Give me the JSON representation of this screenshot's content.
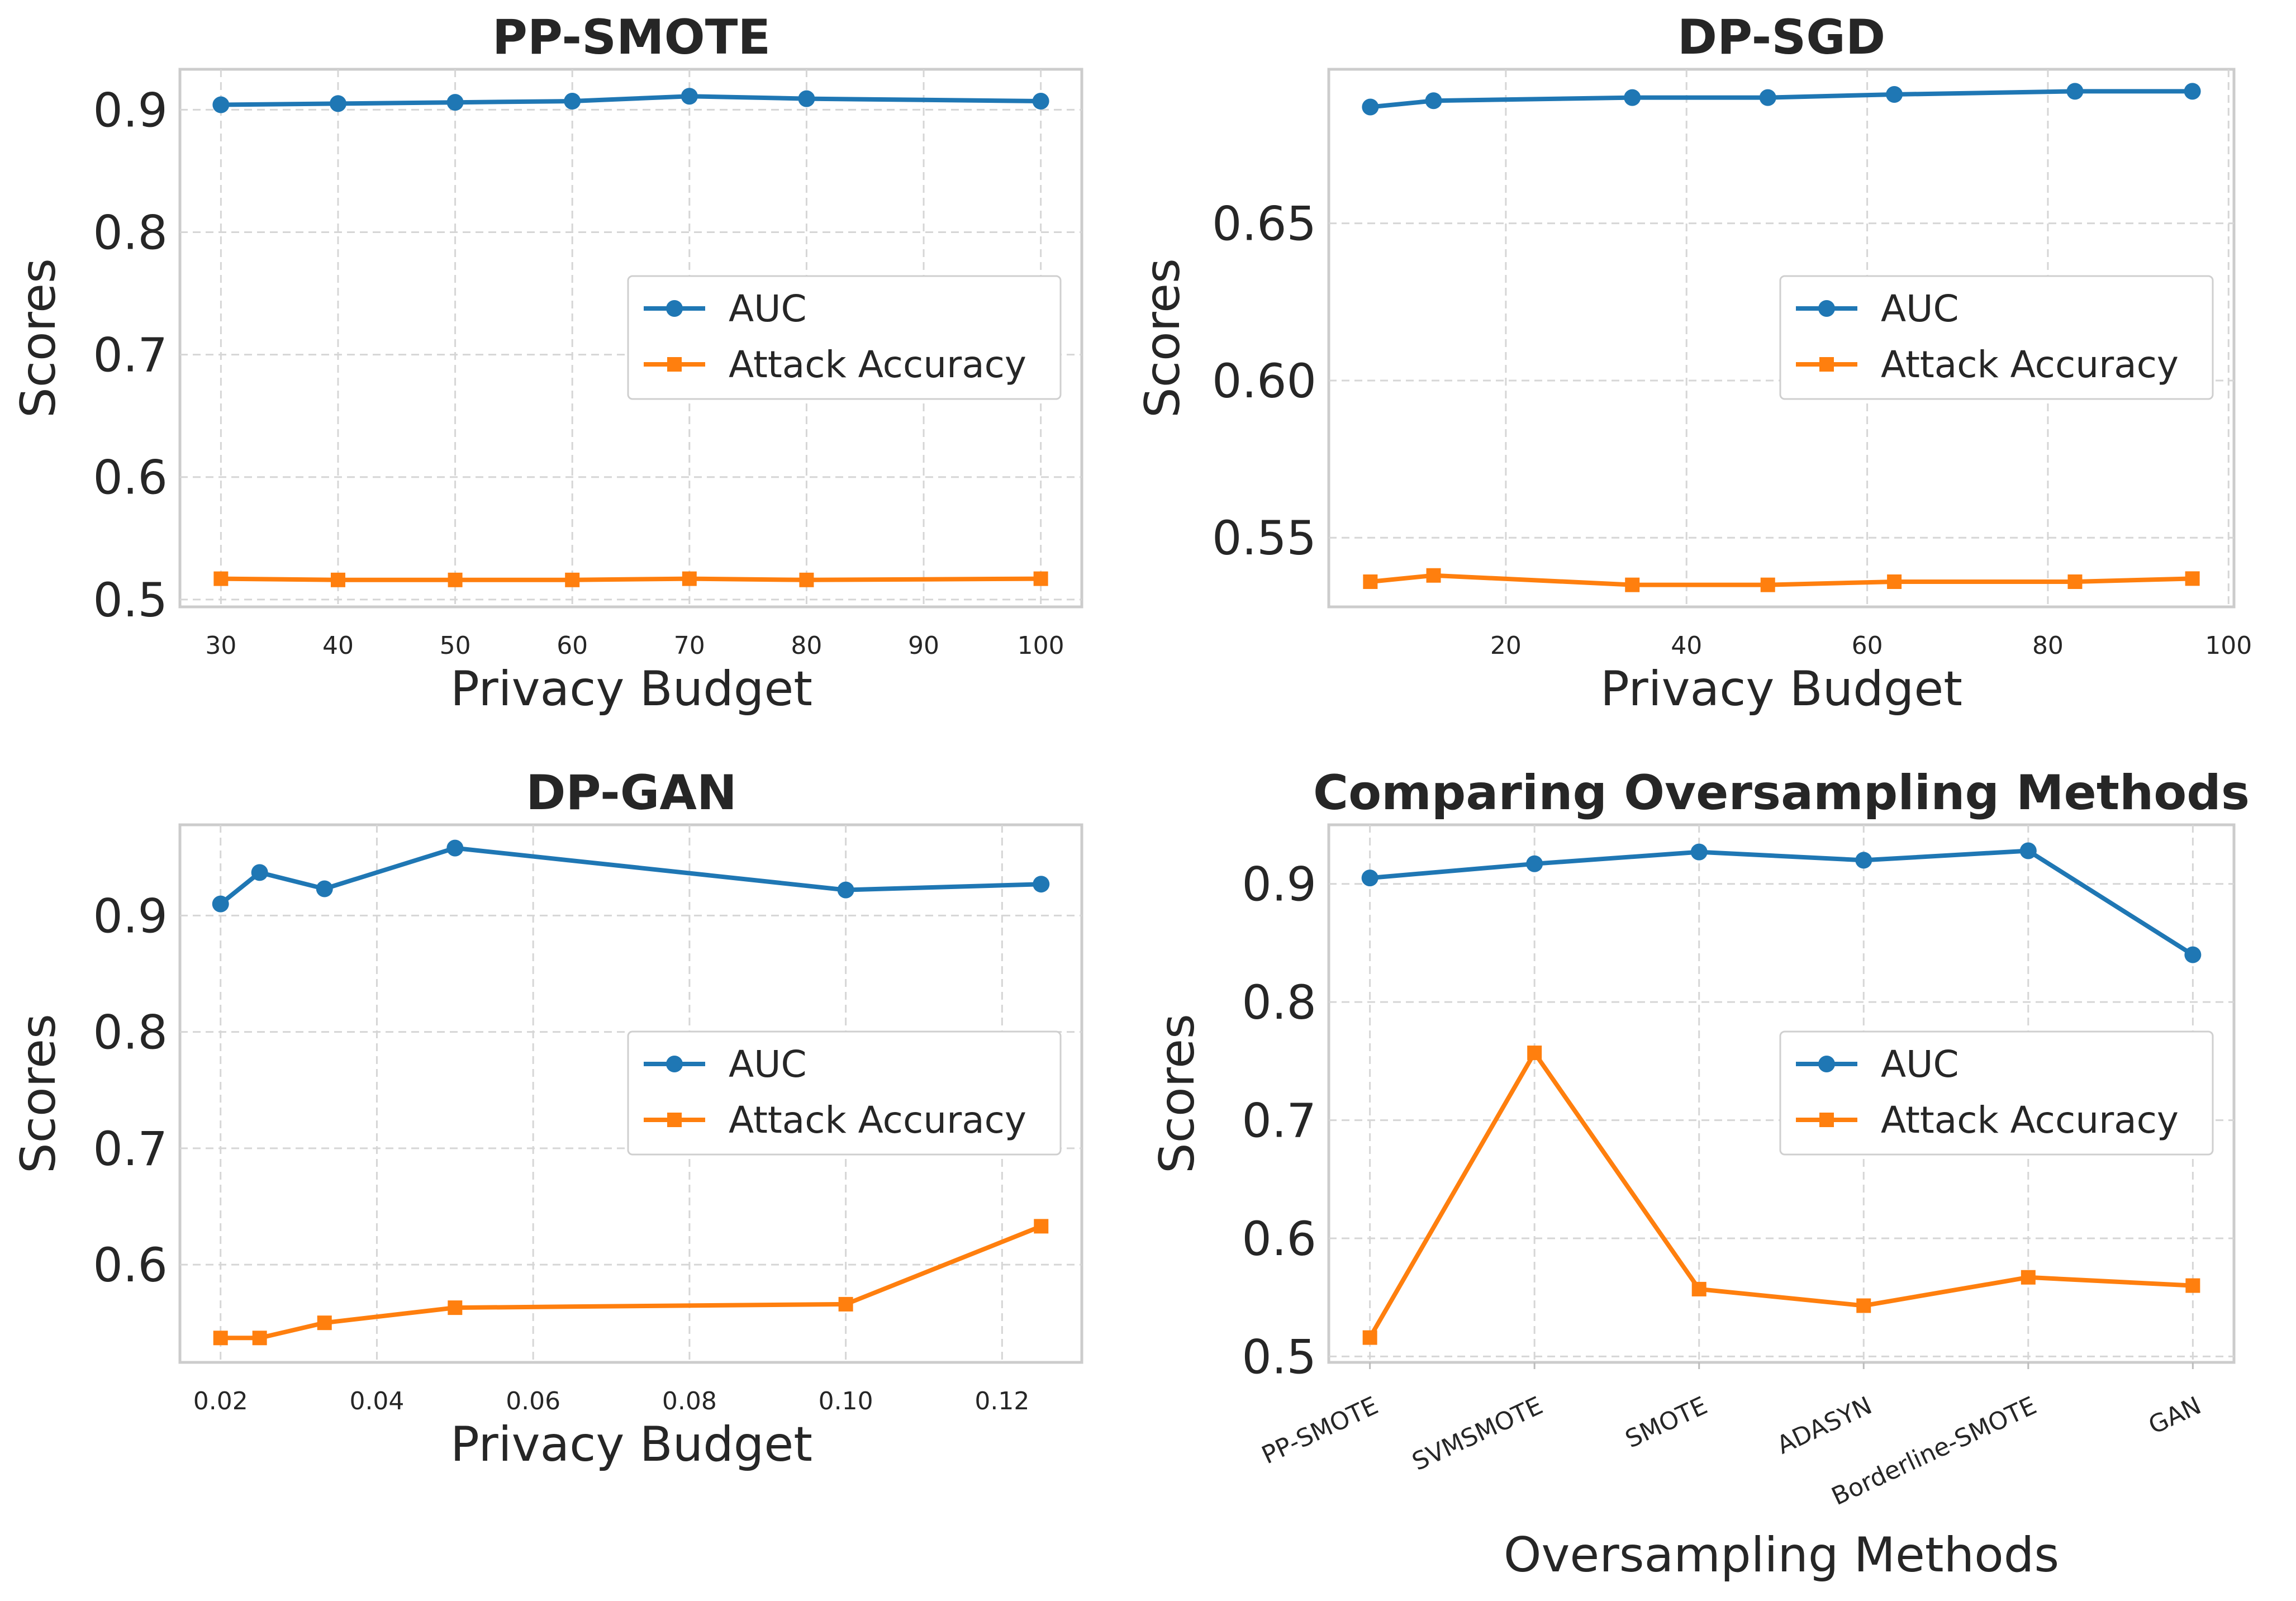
{
  "colors": {
    "auc": "#1f77b4",
    "attack": "#ff7f0e",
    "text": "#262626"
  },
  "chart_data": [
    {
      "type": "line",
      "title": "PP-SMOTE",
      "xlabel": "Privacy Budget",
      "ylabel": "Scores",
      "x": [
        30,
        40,
        50,
        60,
        70,
        80,
        100
      ],
      "xlim": [
        26.5,
        103.5
      ],
      "ylim": [
        0.494,
        0.933
      ],
      "xticks": [
        "30",
        "40",
        "50",
        "60",
        "70",
        "80",
        "90",
        "100"
      ],
      "yticks": [
        "0.5",
        "0.6",
        "0.7",
        "0.8",
        "0.9"
      ],
      "legend": "center-right",
      "series": [
        {
          "name": "AUC",
          "marker": "circle",
          "values": [
            0.904,
            0.905,
            0.906,
            0.907,
            0.911,
            0.909,
            0.907
          ]
        },
        {
          "name": "Attack Accuracy",
          "marker": "square",
          "values": [
            0.517,
            0.516,
            0.516,
            0.516,
            0.517,
            0.516,
            0.517
          ]
        }
      ]
    },
    {
      "type": "line",
      "title": "DP-SGD",
      "xlabel": "Privacy Budget",
      "ylabel": "Scores",
      "x": [
        5,
        12,
        34,
        49,
        63,
        83,
        96
      ],
      "xlim": [
        0.4,
        100.6
      ],
      "ylim": [
        0.528,
        0.699
      ],
      "xticks": [
        "20",
        "40",
        "60",
        "80",
        "100"
      ],
      "yticks": [
        "0.55",
        "0.60",
        "0.65"
      ],
      "legend": "center-right",
      "series": [
        {
          "name": "AUC",
          "marker": "circle",
          "values": [
            0.687,
            0.689,
            0.69,
            0.69,
            0.691,
            0.692,
            0.692
          ]
        },
        {
          "name": "Attack Accuracy",
          "marker": "square",
          "values": [
            0.536,
            0.538,
            0.535,
            0.535,
            0.536,
            0.536,
            0.537
          ]
        }
      ]
    },
    {
      "type": "line",
      "title": "DP-GAN",
      "xlabel": "Privacy Budget",
      "ylabel": "Scores",
      "x": [
        0.02,
        0.025,
        0.0333,
        0.05,
        0.1,
        0.125
      ],
      "xlim": [
        0.0148,
        0.1302
      ],
      "ylim": [
        0.516,
        0.978
      ],
      "xticks": [
        "0.02",
        "0.04",
        "0.06",
        "0.08",
        "0.10",
        "0.12"
      ],
      "yticks": [
        "0.6",
        "0.7",
        "0.8",
        "0.9"
      ],
      "legend": "center-right",
      "series": [
        {
          "name": "AUC",
          "marker": "circle",
          "values": [
            0.91,
            0.937,
            0.923,
            0.958,
            0.922,
            0.927
          ]
        },
        {
          "name": "Attack Accuracy",
          "marker": "square",
          "values": [
            0.537,
            0.537,
            0.55,
            0.563,
            0.566,
            0.633
          ]
        }
      ]
    },
    {
      "type": "line",
      "title": "Comparing Oversampling Methods",
      "xlabel": "Oversampling Methods",
      "ylabel": "Scores",
      "categories": [
        "PP-SMOTE",
        "SVMSMOTE",
        "SMOTE",
        "ADASYN",
        "Borderline-SMOTE",
        "GAN"
      ],
      "xlim": [
        -0.25,
        5.25
      ],
      "ylim": [
        0.495,
        0.95
      ],
      "yticks": [
        "0.5",
        "0.6",
        "0.7",
        "0.8",
        "0.9"
      ],
      "legend": "center-right",
      "series": [
        {
          "name": "AUC",
          "marker": "circle",
          "values": [
            0.905,
            0.917,
            0.927,
            0.92,
            0.928,
            0.84
          ]
        },
        {
          "name": "Attack Accuracy",
          "marker": "square",
          "values": [
            0.516,
            0.757,
            0.557,
            0.543,
            0.567,
            0.56
          ]
        }
      ]
    }
  ]
}
